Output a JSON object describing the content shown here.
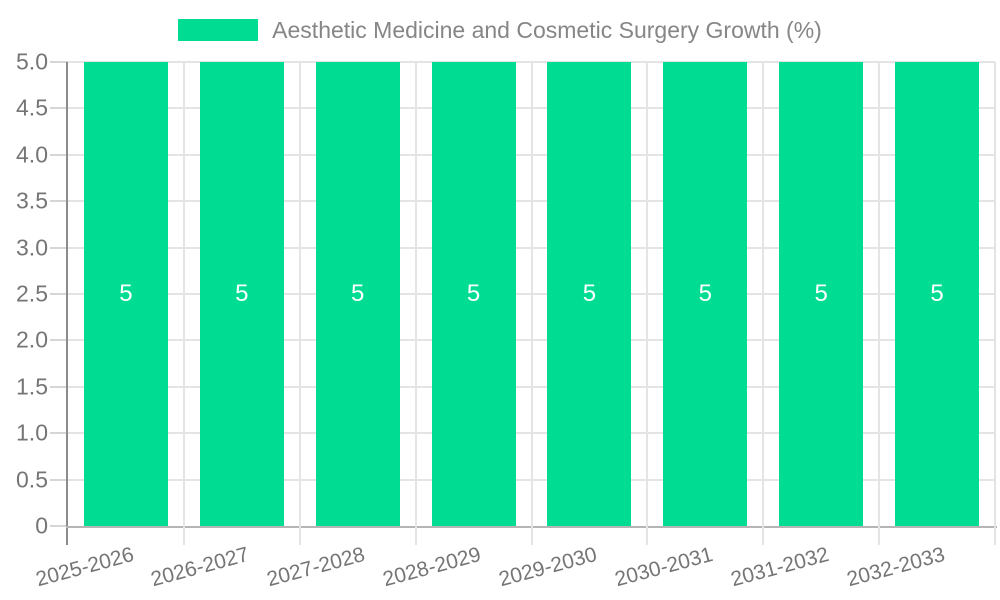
{
  "legend": {
    "label": "Aesthetic Medicine and Cosmetic Surgery Growth (%)"
  },
  "chart_data": {
    "type": "bar",
    "title": "Aesthetic Medicine and Cosmetic Surgery Growth (%)",
    "categories": [
      "2025-2026",
      "2026-2027",
      "2027-2028",
      "2028-2029",
      "2029-2030",
      "2030-2031",
      "2031-2032",
      "2032-2033"
    ],
    "series": [
      {
        "name": "Aesthetic Medicine and Cosmetic Surgery Growth (%)",
        "values": [
          5,
          5,
          5,
          5,
          5,
          5,
          5,
          5
        ],
        "color": "#00DD92"
      }
    ],
    "bar_value_labels": [
      "5",
      "5",
      "5",
      "5",
      "5",
      "5",
      "5",
      "5"
    ],
    "xlabel": "",
    "ylabel": "",
    "ylim": [
      0,
      5
    ],
    "yticks": [
      {
        "value": 0,
        "label": "0"
      },
      {
        "value": 0.5,
        "label": "0.5"
      },
      {
        "value": 1,
        "label": "1.0"
      },
      {
        "value": 1.5,
        "label": "1.5"
      },
      {
        "value": 2,
        "label": "2.0"
      },
      {
        "value": 2.5,
        "label": "2.5"
      },
      {
        "value": 3,
        "label": "3.0"
      },
      {
        "value": 3.5,
        "label": "3.5"
      },
      {
        "value": 4,
        "label": "4.0"
      },
      {
        "value": 4.5,
        "label": "4.5"
      },
      {
        "value": 5,
        "label": "5.0"
      }
    ],
    "grid": true,
    "legend_position": "top",
    "x_label_rotation_deg": -15,
    "colors": {
      "bar": "#00DD92",
      "bar_label_text": "#FFFFFF",
      "grid_line": "#E4E4E4",
      "y_axis_line": "#8C8C8C",
      "x_axis_line": "#B5B5B5",
      "axis_tick": "#D6D6D6",
      "axis_text": "#757575",
      "legend_text": "#868686",
      "background": "#FFFFFF"
    }
  }
}
